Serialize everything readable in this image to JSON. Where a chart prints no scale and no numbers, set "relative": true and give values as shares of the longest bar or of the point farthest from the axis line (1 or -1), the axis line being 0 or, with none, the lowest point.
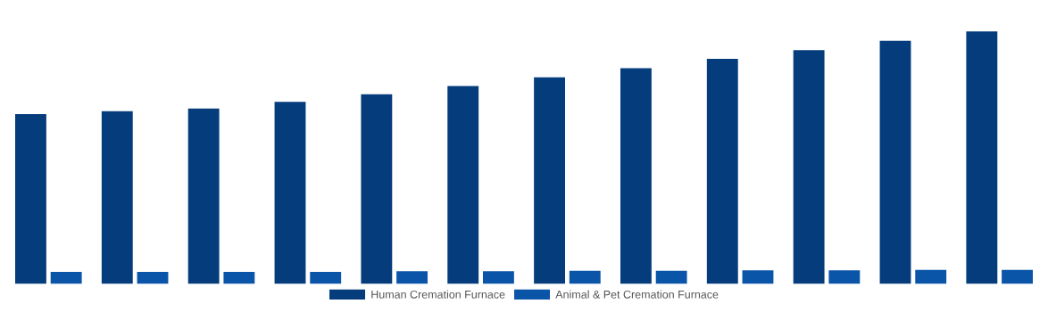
{
  "chart_data": {
    "type": "bar",
    "relative": true,
    "legend": "bottom",
    "grid": false,
    "categories": [
      null,
      null,
      null,
      null,
      null,
      null,
      null,
      null,
      null,
      null,
      null,
      null
    ],
    "series": [
      {
        "name": "Human Cremation Furnace",
        "color": "#043c7c",
        "values": [
          0.673,
          0.684,
          0.695,
          0.721,
          0.751,
          0.784,
          0.818,
          0.855,
          0.892,
          0.926,
          0.963,
          1
        ]
      },
      {
        "name": "Animal & Pet Cremation Furnace",
        "color": "#0a55a8",
        "values": [
          0.048,
          0.048,
          0.048,
          0.048,
          0.05,
          0.05,
          0.052,
          0.052,
          0.054,
          0.054,
          0.056,
          0.056
        ]
      }
    ]
  }
}
